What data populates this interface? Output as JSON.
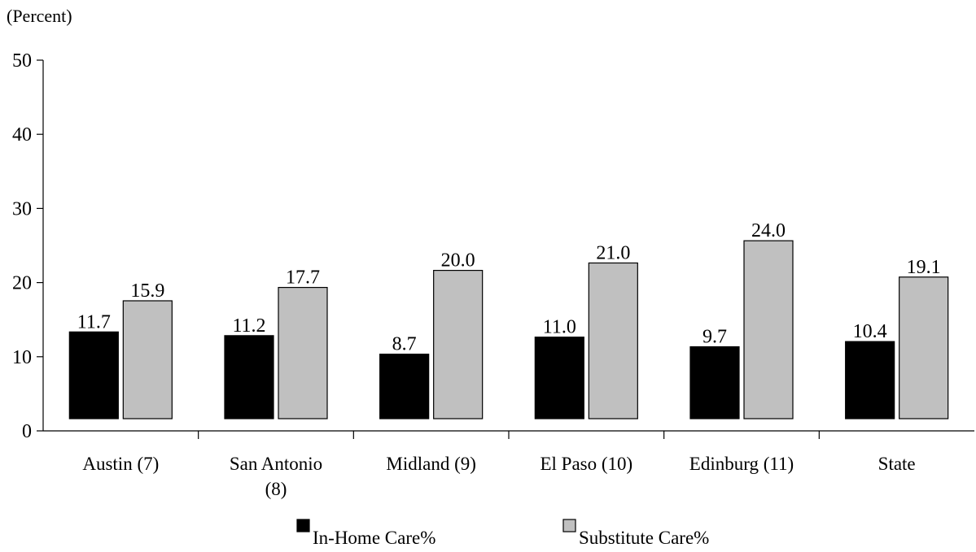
{
  "chart_data": {
    "type": "bar",
    "title": "",
    "ylabel": "(Percent)",
    "xlabel": "",
    "ylim": [
      0,
      50
    ],
    "yticks": [
      0,
      10,
      20,
      30,
      40,
      50
    ],
    "categories": [
      [
        "Austin (7)"
      ],
      [
        "San Antonio",
        "(8)"
      ],
      [
        "Midland (9)"
      ],
      [
        "El Paso (10)"
      ],
      [
        "Edinburg (11)"
      ],
      [
        "State"
      ]
    ],
    "series": [
      {
        "name": "In-Home Care%",
        "color": "#000000",
        "values": [
          11.7,
          11.2,
          8.7,
          11.0,
          9.7,
          10.4
        ],
        "labels": [
          "11.7",
          "11.2",
          "8.7",
          "11.0",
          "9.7",
          "10.4"
        ]
      },
      {
        "name": "Substitute Care%",
        "color": "#c0c0c0",
        "values": [
          15.9,
          17.7,
          20.0,
          21.0,
          24.0,
          19.1
        ],
        "labels": [
          "15.9",
          "17.7",
          "20.0",
          "21.0",
          "24.0",
          "19.1"
        ]
      }
    ],
    "legend_position": "bottom",
    "grid": false
  }
}
